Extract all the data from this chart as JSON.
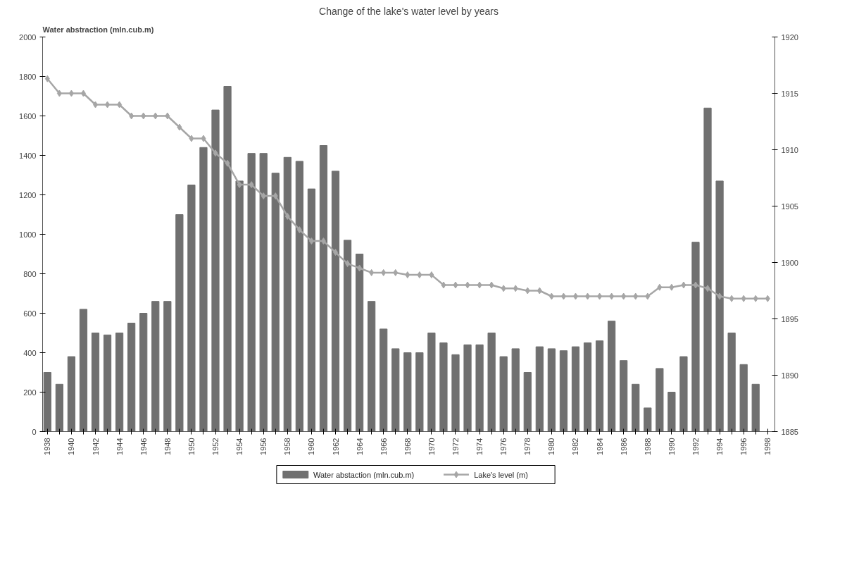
{
  "chart_data": {
    "type": "bar",
    "title": "Change of the lake's water level by years",
    "ylabel": "Water abstraction (mln.cub.m)",
    "x": [
      1938,
      1939,
      1940,
      1941,
      1942,
      1943,
      1944,
      1945,
      1946,
      1947,
      1948,
      1949,
      1950,
      1951,
      1952,
      1953,
      1954,
      1955,
      1956,
      1957,
      1958,
      1959,
      1960,
      1961,
      1962,
      1963,
      1964,
      1965,
      1966,
      1967,
      1968,
      1969,
      1970,
      1971,
      1972,
      1973,
      1974,
      1975,
      1976,
      1977,
      1978,
      1979,
      1980,
      1981,
      1982,
      1983,
      1984,
      1985,
      1986,
      1987,
      1988,
      1989,
      1990,
      1991,
      1992,
      1993,
      1994,
      1995,
      1996,
      1997
    ],
    "series": [
      {
        "name": "Water abstaction (mln.cub.m)",
        "color": "#707070",
        "values": [
          300,
          240,
          380,
          620,
          500,
          490,
          500,
          550,
          600,
          660,
          660,
          1100,
          1250,
          1440,
          1630,
          1750,
          1270,
          1410,
          1410,
          1310,
          1390,
          1370,
          1230,
          1450,
          1320,
          970,
          900,
          660,
          520,
          420,
          400,
          400,
          500,
          450,
          390,
          440,
          440,
          500,
          380,
          420,
          300,
          430,
          420,
          410,
          430,
          450,
          460,
          560,
          360,
          240,
          120,
          320,
          200,
          380,
          960,
          1640,
          1270,
          500,
          340,
          240
        ]
      },
      {
        "name": "Lake's level (m)",
        "type": "line",
        "axis": "y2",
        "color": "#a6a6a6",
        "marker": "diamond",
        "line_style": "solid",
        "x": [
          1938,
          1939,
          1940,
          1941,
          1942,
          1943,
          1944,
          1945,
          1946,
          1947,
          1948,
          1949,
          1950,
          1951,
          1952,
          1953,
          1954,
          1955,
          1956,
          1957,
          1958,
          1959,
          1960,
          1961,
          1962,
          1963,
          1964,
          1965,
          1966,
          1967,
          1968,
          1969,
          1970,
          1971,
          1972,
          1973,
          1974,
          1975,
          1976,
          1977,
          1978,
          1979,
          1980,
          1981,
          1982,
          1983,
          1984,
          1985,
          1986,
          1987,
          1988,
          1989,
          1990,
          1991,
          1992,
          1993,
          1994,
          1995,
          1996,
          1997,
          1998
        ],
        "values": [
          1916.3,
          1915,
          1915,
          1915,
          1914,
          1914,
          1914,
          1913,
          1913,
          1913,
          1913,
          1912,
          1911,
          1911,
          1909.7,
          1908.8,
          1906.9,
          1906.9,
          1905.9,
          1905.9,
          1904.1,
          1902.9,
          1901.9,
          1901.9,
          1900.9,
          1899.9,
          1899.5,
          1899.1,
          1899.1,
          1899.1,
          1898.9,
          1898.9,
          1898.9,
          1898,
          1898,
          1898,
          1898,
          1898,
          1897.7,
          1897.7,
          1897.5,
          1897.5,
          1897,
          1897,
          1897,
          1897,
          1897,
          1897,
          1897,
          1897,
          1897,
          1897.8,
          1897.8,
          1898,
          1898,
          1897.7,
          1897,
          1896.8,
          1896.8,
          1896.8,
          1896.8
        ]
      }
    ],
    "xlim": [
      1937.6,
      1998.6
    ],
    "xticks": [
      1938,
      {
        "value": 1939,
        "label": null
      },
      1940,
      {
        "value": 1941,
        "label": null
      },
      1942,
      {
        "value": 1943,
        "label": null
      },
      1944,
      {
        "value": 1945,
        "label": null
      },
      1946,
      {
        "value": 1947,
        "label": null
      },
      1948,
      {
        "value": 1949,
        "label": null
      },
      1950,
      {
        "value": 1951,
        "label": null
      },
      1952,
      {
        "value": 1953,
        "label": null
      },
      1954,
      {
        "value": 1955,
        "label": null
      },
      1956,
      {
        "value": 1957,
        "label": null
      },
      1958,
      {
        "value": 1959,
        "label": null
      },
      1960,
      {
        "value": 1961,
        "label": null
      },
      1962,
      {
        "value": 1963,
        "label": null
      },
      1964,
      {
        "value": 1965,
        "label": null
      },
      1966,
      {
        "value": 1967,
        "label": null
      },
      1968,
      {
        "value": 1969,
        "label": null
      },
      1970,
      {
        "value": 1971,
        "label": null
      },
      1972,
      {
        "value": 1973,
        "label": null
      },
      1974,
      {
        "value": 1975,
        "label": null
      },
      1976,
      {
        "value": 1977,
        "label": null
      },
      1978,
      {
        "value": 1979,
        "label": null
      },
      1980,
      {
        "value": 1981,
        "label": null
      },
      1982,
      {
        "value": 1983,
        "label": null
      },
      1984,
      {
        "value": 1985,
        "label": null
      },
      1986,
      {
        "value": 1987,
        "label": null
      },
      1988,
      {
        "value": 1989,
        "label": null
      },
      1990,
      {
        "value": 1991,
        "label": null
      },
      1992,
      {
        "value": 1993,
        "label": null
      },
      1994,
      {
        "value": 1995,
        "label": null
      },
      1996,
      {
        "value": 1997,
        "label": null
      },
      1998
    ],
    "ylim": [
      0,
      2000
    ],
    "yticks": [
      0,
      200,
      400,
      600,
      800,
      1000,
      1200,
      1400,
      1600,
      1800,
      2000
    ],
    "y2lim": [
      1885,
      1920
    ],
    "y2ticks": [
      1885,
      1890,
      1895,
      1900,
      1905,
      1910,
      1915,
      1920
    ],
    "grid": false,
    "legend": "bottom"
  }
}
